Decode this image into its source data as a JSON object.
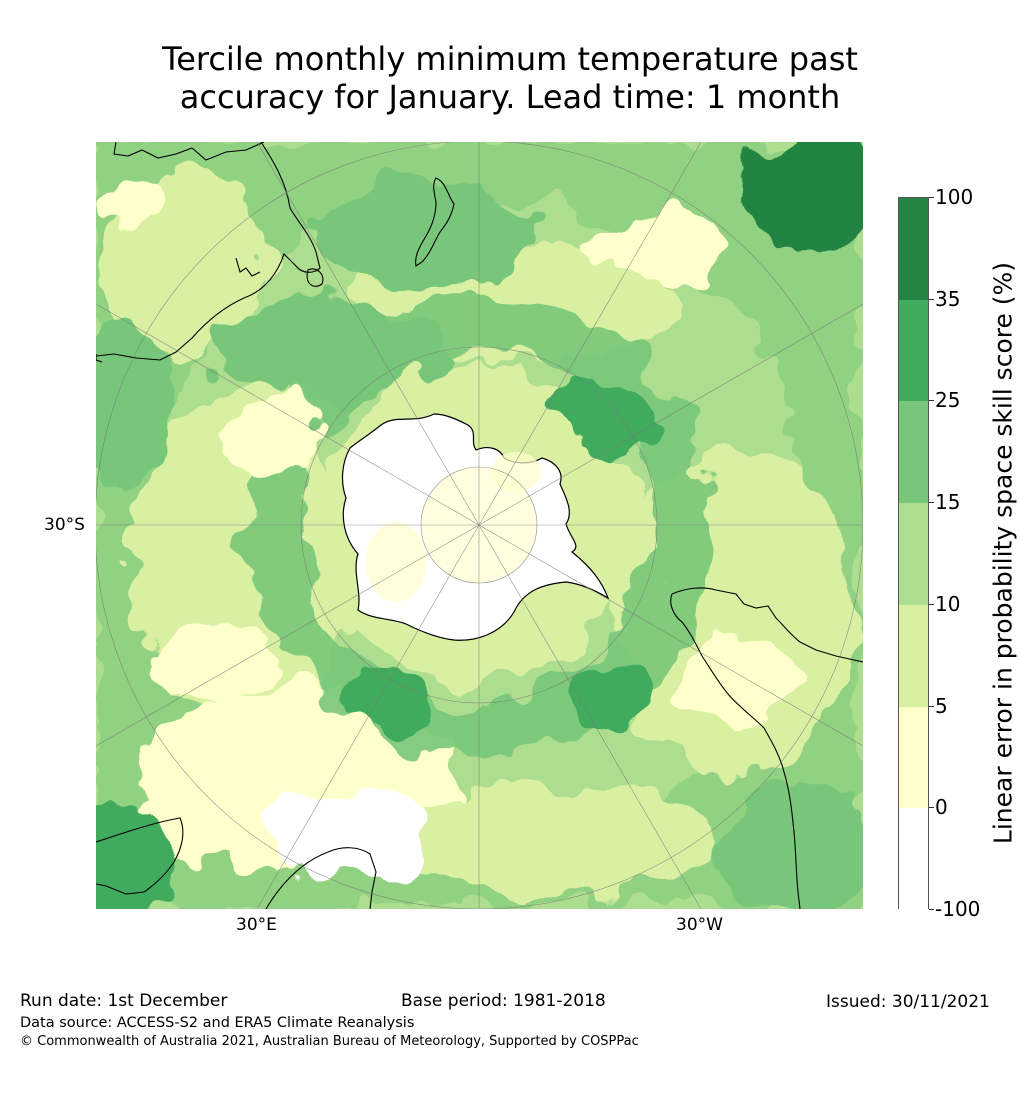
{
  "title": {
    "line1": "Tercile monthly minimum temperature past",
    "line2": "accuracy for January. Lead time: 1 month"
  },
  "map": {
    "projection": "south-polar-stereographic",
    "labels": {
      "lat_30s": "30°S",
      "lon_30e": "30°E",
      "lon_30w": "30°W"
    },
    "colors": {
      "c_neg": "#ffffff",
      "c_0_5": "#ffffcc",
      "c_5_10": "#d9f0a3",
      "c_10_15": "#addd8e",
      "c_15_25": "#78c679",
      "c_25_35": "#41ab5d",
      "c_35_100": "#238443",
      "coast": "#000000",
      "grid": "#777777"
    }
  },
  "colorbar": {
    "label": "Linear error in probability space skill score (%)",
    "ticks": [
      "100",
      "35",
      "25",
      "15",
      "10",
      "5",
      "0",
      "-100"
    ],
    "colors": [
      "#238443",
      "#41ab5d",
      "#78c679",
      "#addd8e",
      "#d9f0a3",
      "#ffffcc",
      "#ffffff"
    ]
  },
  "footer": {
    "run_date": "Run date: 1st December",
    "base_period": "Base period: 1981-2018",
    "issued": "Issued: 30/11/2021",
    "data_source": "Data source: ACCESS-S2 and ERA5 Climate Reanalysis",
    "copyright": "© Commonwealth of Australia 2021, Australian Bureau of Meteorology, Supported by COSPPac"
  }
}
